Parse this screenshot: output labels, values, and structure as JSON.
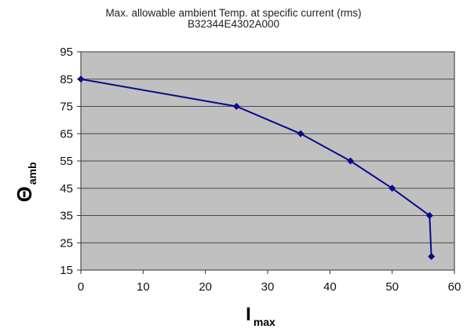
{
  "chart_data": {
    "type": "line",
    "title": "Max. allowable ambient Temp. at specific current (rms)",
    "subtitle": "B32344E4302A000",
    "ylabel": {
      "symbol": "Θ",
      "subscript": "amb"
    },
    "xlabel": {
      "symbol": "I",
      "subscript": "max"
    },
    "xlim": [
      0,
      60
    ],
    "ylim": [
      15,
      95
    ],
    "xticks": [
      0,
      10,
      20,
      30,
      40,
      50,
      60
    ],
    "yticks": [
      15,
      25,
      35,
      45,
      55,
      65,
      75,
      85,
      95
    ],
    "grid": "horizontal",
    "x": [
      0,
      25,
      35.3,
      43.3,
      50,
      56,
      56.3
    ],
    "y": [
      85,
      75,
      65,
      55,
      45,
      35,
      20
    ],
    "colors": {
      "plot_background": "#c0c0c0",
      "line": "#0a0a8a",
      "gridline": "#4a4a4a"
    }
  }
}
